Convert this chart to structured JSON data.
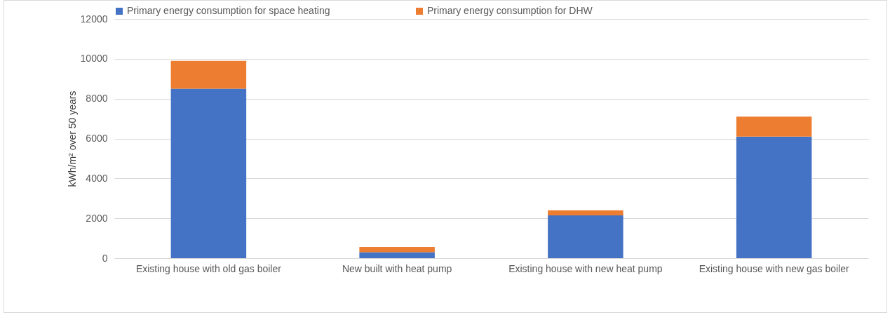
{
  "chart_data": {
    "type": "bar",
    "stacked": true,
    "categories": [
      "Existing house with old gas boiler",
      "New built with heat pump",
      "Existing house with new heat pump",
      "Existing house with new gas boiler"
    ],
    "series": [
      {
        "name": "Primary energy consumption for space heating",
        "color": "#4472c4",
        "values": [
          8500,
          300,
          2150,
          6100
        ]
      },
      {
        "name": "Primary energy consumption for DHW",
        "color": "#ed7d31",
        "values": [
          1400,
          260,
          250,
          1000
        ]
      }
    ],
    "ylabel": "kWh/m² over 50 years",
    "ylim": [
      0,
      12000
    ],
    "yticks": [
      0,
      2000,
      4000,
      6000,
      8000,
      10000,
      12000
    ],
    "grid": "y",
    "legend": "top"
  }
}
